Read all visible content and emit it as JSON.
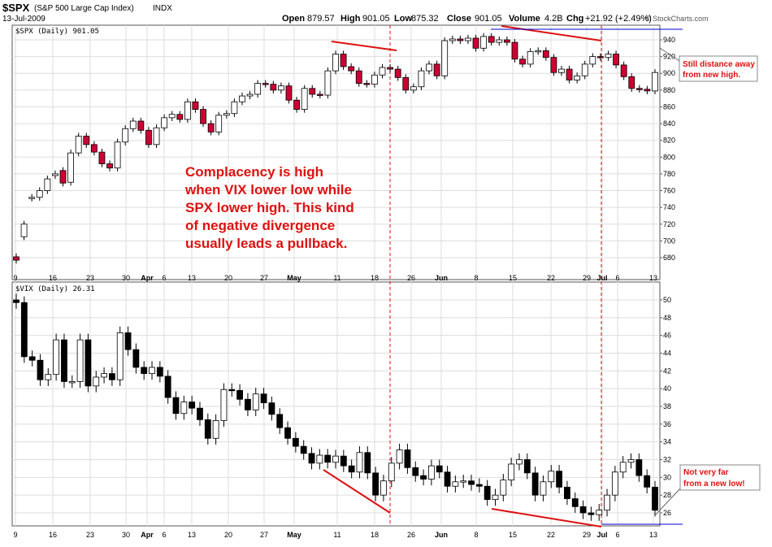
{
  "header": {
    "symbol": "$SPX",
    "name": "(S&P 500 Large Cap Index)",
    "exchange": "INDX",
    "date": "13-Jul-2009",
    "open_label": "Open",
    "open_value": "879.57",
    "high_label": "High",
    "high_value": "901.05",
    "low_label": "Low",
    "low_value": "875.32",
    "close_label": "Close",
    "close_value": "901.05",
    "volume_label": "Volume",
    "volume_value": "4.2B",
    "chg_label": "Chg",
    "chg_value": "+21.92 (+2.49%)",
    "credit": "© StockCharts.com"
  },
  "annotations": {
    "main_note": [
      "Complacency is high",
      "when VIX lower low while",
      "SPX lower high. This kind",
      "of negative divergence",
      "usually leads a pullback."
    ],
    "spx_callout": [
      "Still distance away",
      "from new high."
    ],
    "vix_callout": [
      "Not very far",
      "from a new low!"
    ]
  },
  "colors": {
    "up": "#ffffff",
    "spx_down": "#cc0033",
    "vix_down": "#000000",
    "annotation_red": "#dd1111",
    "support_blue": "#0000cc",
    "grid": "#dddddd"
  },
  "chart_data": [
    {
      "type": "candlestick",
      "symbol": "$SPX",
      "legend": "$SPX (Daily) 901.05",
      "period": "Daily",
      "ylim": [
        660,
        960
      ],
      "yticks": [
        680,
        700,
        720,
        740,
        760,
        780,
        800,
        820,
        840,
        860,
        880,
        900,
        920,
        940
      ],
      "xticks": [
        "9",
        "16",
        "23",
        "30",
        "Apr",
        "6",
        "13",
        "20",
        "27",
        "May",
        "11",
        "18",
        "26",
        "Jun",
        "8",
        "15",
        "22",
        "29",
        "Jul",
        "6",
        "13"
      ],
      "close": [
        677,
        720,
        752,
        760,
        774,
        780,
        769,
        805,
        825,
        815,
        806,
        792,
        787,
        818,
        834,
        843,
        832,
        815,
        835,
        847,
        851,
        845,
        866,
        857,
        840,
        830,
        850,
        852,
        866,
        873,
        875,
        888,
        887,
        880,
        885,
        868,
        857,
        882,
        875,
        874,
        903,
        923,
        908,
        903,
        888,
        887,
        898,
        907,
        905,
        895,
        880,
        884,
        903,
        911,
        897,
        939,
        941,
        939,
        942,
        930,
        944,
        937,
        940,
        937,
        917,
        911,
        926,
        927,
        919,
        901,
        905,
        892,
        897,
        911,
        920,
        919,
        923,
        910,
        896,
        882,
        881,
        879,
        901
      ],
      "open": [
        681,
        705,
        751,
        752,
        760,
        778,
        784,
        770,
        805,
        825,
        815,
        806,
        792,
        787,
        818,
        834,
        843,
        832,
        815,
        835,
        847,
        851,
        845,
        866,
        857,
        840,
        830,
        850,
        852,
        866,
        873,
        875,
        888,
        887,
        880,
        885,
        868,
        857,
        882,
        875,
        874,
        903,
        923,
        908,
        903,
        888,
        887,
        898,
        907,
        905,
        895,
        880,
        884,
        903,
        911,
        897,
        939,
        941,
        939,
        942,
        930,
        944,
        937,
        940,
        937,
        917,
        911,
        926,
        927,
        919,
        901,
        905,
        892,
        897,
        911,
        920,
        919,
        923,
        910,
        896,
        882,
        881,
        879
      ]
    },
    {
      "type": "candlestick",
      "symbol": "$VIX",
      "legend": "$VIX (Daily) 26.31",
      "period": "Daily",
      "ylim": [
        24.2,
        51.5
      ],
      "yticks": [
        26,
        28,
        30,
        32,
        34,
        36,
        38,
        40,
        42,
        44,
        46,
        48,
        50
      ],
      "xticks": [
        "9",
        "16",
        "23",
        "30",
        "Apr",
        "6",
        "13",
        "20",
        "27",
        "May",
        "11",
        "18",
        "26",
        "Jun",
        "8",
        "15",
        "22",
        "29",
        "Jul",
        "6",
        "13"
      ],
      "close": [
        49.7,
        43.6,
        43.2,
        41,
        41.6,
        45.5,
        40.8,
        40.8,
        45.5,
        40.3,
        41.3,
        41.7,
        41.0,
        46.3,
        44.4,
        42.4,
        41.7,
        42.4,
        41.4,
        39.0,
        37.2,
        38.5,
        37.8,
        36.5,
        34.4,
        36.4,
        39.9,
        39.8,
        38.8,
        37.6,
        39.4,
        38.4,
        37.1,
        35.6,
        34.4,
        33.5,
        32.7,
        31.6,
        32.5,
        31.7,
        32.4,
        31.3,
        30.6,
        32.8,
        30.5,
        28.0,
        29.6,
        31.6,
        33.1,
        31.1,
        30.2,
        29.8,
        31.3,
        30.6,
        29.0,
        29.5,
        29.6,
        29.2,
        29.0,
        27.5,
        28.0,
        29.7,
        31.5,
        32.0,
        30.5,
        28.0,
        29.5,
        30.7,
        28.9,
        27.6,
        26.7,
        26.0,
        25.8,
        26.3,
        28.0,
        30.6,
        31.7,
        32.0,
        30.2,
        28.9,
        26.3
      ],
      "open": [
        50.0,
        49.7,
        43.6,
        43.2,
        41,
        41.6,
        45.5,
        40.8,
        40.8,
        45.5,
        40.3,
        41.3,
        41.7,
        41.0,
        46.3,
        44.4,
        42.4,
        41.7,
        42.4,
        41.4,
        39.0,
        37.2,
        38.5,
        37.8,
        36.5,
        34.4,
        36.4,
        39.9,
        39.8,
        38.8,
        37.6,
        39.4,
        38.4,
        37.1,
        35.6,
        34.4,
        33.5,
        32.7,
        31.6,
        32.5,
        31.7,
        32.4,
        31.3,
        30.6,
        32.8,
        30.5,
        28.0,
        29.6,
        31.6,
        33.1,
        31.1,
        30.2,
        29.8,
        31.3,
        30.6,
        29.0,
        29.5,
        29.6,
        29.2,
        29.0,
        27.5,
        28.0,
        29.7,
        31.5,
        32.0,
        30.5,
        28.0,
        29.5,
        30.7,
        28.9,
        27.6,
        26.7,
        26.0,
        25.8,
        26.3,
        28.0,
        30.6,
        31.7,
        32.0,
        30.2,
        28.9
      ]
    }
  ]
}
